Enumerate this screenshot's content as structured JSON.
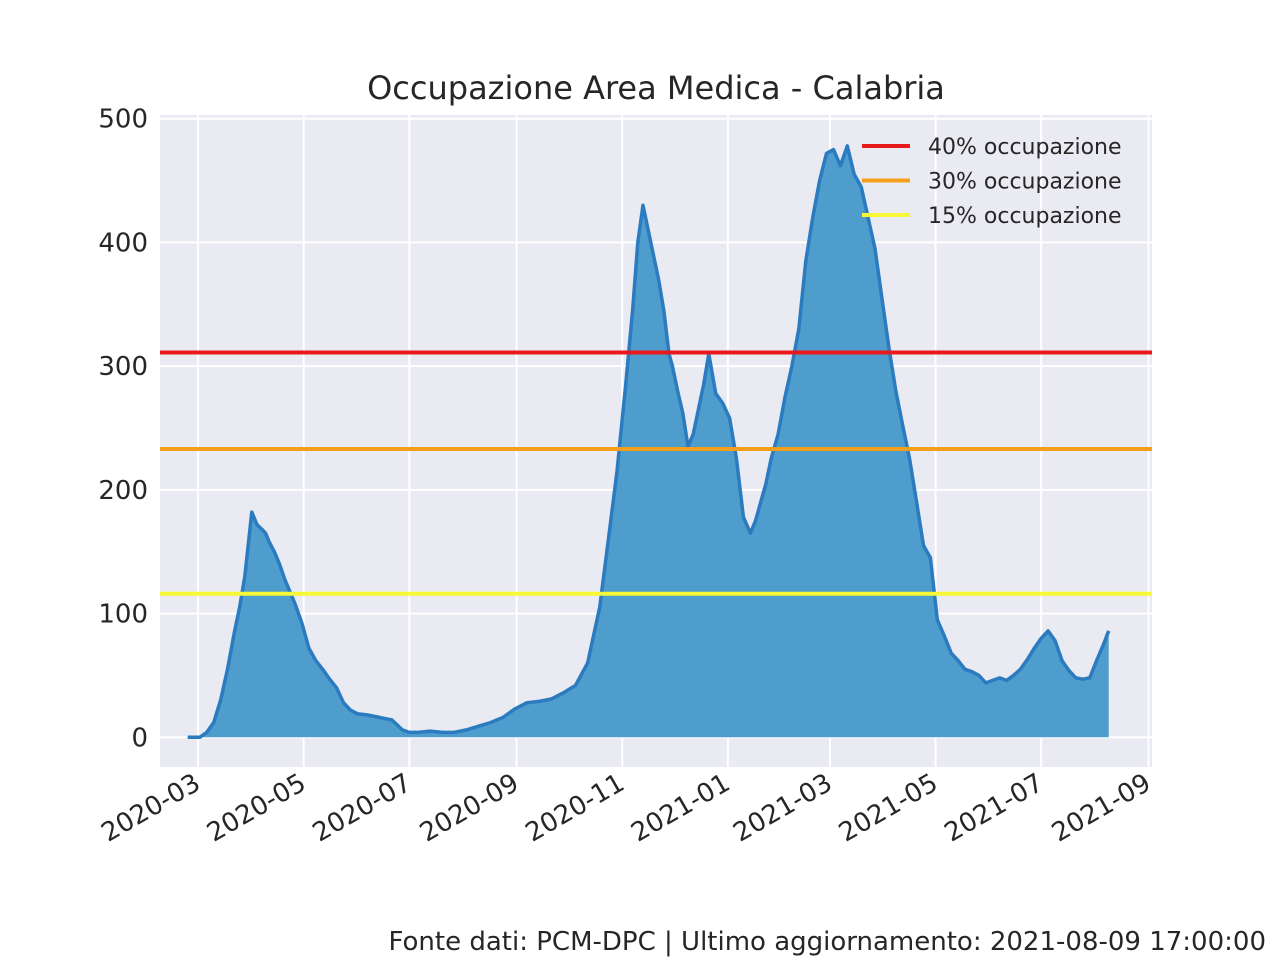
{
  "chart_data": {
    "type": "area",
    "title": "Occupazione Area Medica - Calabria",
    "xlabel": "",
    "ylabel": "",
    "x_range": [
      "2020-02-08",
      "2021-09-03"
    ],
    "ylim": [
      -24,
      503
    ],
    "y_ticks": [
      0,
      100,
      200,
      300,
      400,
      500
    ],
    "x_ticks": [
      "2020-03",
      "2020-05",
      "2020-07",
      "2020-09",
      "2020-11",
      "2021-01",
      "2021-03",
      "2021-05",
      "2021-07",
      "2021-09"
    ],
    "grid": true,
    "legend_position": "top-right",
    "series": [
      {
        "color": "#2a7bbf",
        "fill_color": "#4f9dcd",
        "x": [
          "2020-02-24",
          "2020-03-02",
          "2020-03-06",
          "2020-03-10",
          "2020-03-14",
          "2020-03-18",
          "2020-03-22",
          "2020-03-25",
          "2020-03-28",
          "2020-04-01",
          "2020-04-04",
          "2020-04-07",
          "2020-04-09",
          "2020-04-11",
          "2020-04-14",
          "2020-04-17",
          "2020-04-20",
          "2020-04-23",
          "2020-04-26",
          "2020-04-30",
          "2020-05-04",
          "2020-05-08",
          "2020-05-12",
          "2020-05-16",
          "2020-05-20",
          "2020-05-24",
          "2020-05-28",
          "2020-06-01",
          "2020-06-07",
          "2020-06-14",
          "2020-06-21",
          "2020-06-27",
          "2020-07-01",
          "2020-07-06",
          "2020-07-13",
          "2020-07-20",
          "2020-07-27",
          "2020-08-03",
          "2020-08-10",
          "2020-08-17",
          "2020-08-24",
          "2020-08-31",
          "2020-09-07",
          "2020-09-14",
          "2020-09-21",
          "2020-09-28",
          "2020-10-05",
          "2020-10-12",
          "2020-10-19",
          "2020-10-24",
          "2020-10-29",
          "2020-11-03",
          "2020-11-07",
          "2020-11-10",
          "2020-11-13",
          "2020-11-16",
          "2020-11-19",
          "2020-11-22",
          "2020-11-25",
          "2020-11-28",
          "2020-11-30",
          "2020-12-03",
          "2020-12-06",
          "2020-12-09",
          "2020-12-12",
          "2020-12-15",
          "2020-12-18",
          "2020-12-21",
          "2020-12-25",
          "2020-12-29",
          "2021-01-02",
          "2021-01-06",
          "2021-01-10",
          "2021-01-14",
          "2021-01-17",
          "2021-01-20",
          "2021-01-23",
          "2021-01-26",
          "2021-01-30",
          "2021-02-03",
          "2021-02-07",
          "2021-02-11",
          "2021-02-15",
          "2021-02-19",
          "2021-02-23",
          "2021-02-27",
          "2021-03-03",
          "2021-03-07",
          "2021-03-11",
          "2021-03-15",
          "2021-03-19",
          "2021-03-23",
          "2021-03-27",
          "2021-03-31",
          "2021-04-04",
          "2021-04-08",
          "2021-04-12",
          "2021-04-16",
          "2021-04-20",
          "2021-04-24",
          "2021-04-28",
          "2021-05-02",
          "2021-05-06",
          "2021-05-10",
          "2021-05-14",
          "2021-05-18",
          "2021-05-22",
          "2021-05-26",
          "2021-05-30",
          "2021-06-03",
          "2021-06-07",
          "2021-06-11",
          "2021-06-15",
          "2021-06-19",
          "2021-06-23",
          "2021-06-27",
          "2021-07-01",
          "2021-07-05",
          "2021-07-09",
          "2021-07-13",
          "2021-07-17",
          "2021-07-21",
          "2021-07-25",
          "2021-07-29",
          "2021-08-02",
          "2021-08-06",
          "2021-08-09"
        ],
        "values": [
          0,
          0,
          4,
          12,
          30,
          55,
          85,
          105,
          130,
          182,
          172,
          168,
          165,
          158,
          150,
          140,
          128,
          118,
          108,
          92,
          72,
          62,
          55,
          47,
          40,
          28,
          22,
          19,
          18,
          16,
          14,
          6,
          4,
          4,
          5,
          4,
          4,
          6,
          9,
          12,
          16,
          23,
          28,
          29,
          31,
          36,
          42,
          60,
          105,
          160,
          215,
          285,
          345,
          400,
          430,
          410,
          390,
          370,
          345,
          310,
          300,
          280,
          262,
          235,
          245,
          265,
          285,
          310,
          278,
          270,
          258,
          225,
          178,
          165,
          175,
          190,
          205,
          225,
          245,
          275,
          300,
          330,
          385,
          420,
          450,
          472,
          475,
          462,
          478,
          455,
          445,
          420,
          395,
          355,
          315,
          280,
          252,
          225,
          190,
          155,
          145,
          95,
          82,
          68,
          62,
          55,
          53,
          50,
          44,
          46,
          48,
          46,
          50,
          55,
          63,
          72,
          80,
          86,
          78,
          62,
          54,
          48,
          47,
          48,
          62,
          75,
          86
        ]
      }
    ],
    "reference_lines": [
      {
        "name": "40% occupazione",
        "value": 311,
        "color": "#e8191b"
      },
      {
        "name": "30% occupazione",
        "value": 233,
        "color": "#f2a01c"
      },
      {
        "name": "15% occupazione",
        "value": 116,
        "color": "#f7f734"
      }
    ]
  },
  "footer": {
    "source": "Fonte dati: PCM-DPC | Ultimo aggiornamento: 2021-08-09 17:00:00"
  }
}
